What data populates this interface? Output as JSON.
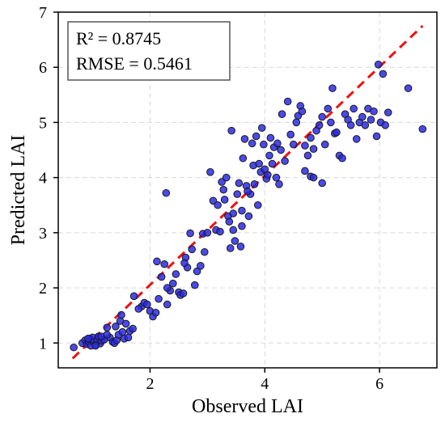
{
  "chart_data": {
    "type": "scatter",
    "title": "",
    "xlabel": "Observed LAI",
    "ylabel": "Predicted LAI",
    "xlim": [
      0.4,
      7.0
    ],
    "ylim": [
      0.55,
      7.0
    ],
    "xticks": [
      "2",
      "4",
      "6"
    ],
    "xtick_values": [
      2,
      4,
      6
    ],
    "yticks": [
      "1",
      "2",
      "3",
      "4",
      "5",
      "6",
      "7"
    ],
    "ytick_values": [
      1,
      2,
      3,
      4,
      5,
      6,
      7
    ],
    "grid": true,
    "point_color": "#2a2ae6",
    "point_edge_color": "#1a1a1a",
    "fit_line": {
      "style": "dashed",
      "color": "#ee1111",
      "x": [
        0.65,
        6.75
      ],
      "y": [
        0.72,
        6.75
      ]
    },
    "stats": {
      "r2_label": "R² = 0.8745",
      "rmse_label": "RMSE = 0.5461"
    },
    "points": [
      [
        0.67,
        0.92
      ],
      [
        0.82,
        1.0
      ],
      [
        0.87,
        1.05
      ],
      [
        0.9,
        0.98
      ],
      [
        0.93,
        1.03
      ],
      [
        0.95,
        1.08
      ],
      [
        0.97,
        0.95
      ],
      [
        1.0,
        1.1
      ],
      [
        1.02,
        1.02
      ],
      [
        1.05,
        0.97
      ],
      [
        1.08,
        1.05
      ],
      [
        1.1,
        1.12
      ],
      [
        1.13,
        0.99
      ],
      [
        1.16,
        1.04
      ],
      [
        1.2,
        1.06
      ],
      [
        1.25,
        1.28
      ],
      [
        1.3,
        1.1
      ],
      [
        1.35,
        1.02
      ],
      [
        1.38,
        1.0
      ],
      [
        1.42,
        1.05
      ],
      [
        1.45,
        1.15
      ],
      [
        1.48,
        1.4
      ],
      [
        1.5,
        1.51
      ],
      [
        1.52,
        1.2
      ],
      [
        1.55,
        1.08
      ],
      [
        1.58,
        1.35
      ],
      [
        1.62,
        1.1
      ],
      [
        1.65,
        1.22
      ],
      [
        1.7,
        1.26
      ],
      [
        1.72,
        1.85
      ],
      [
        1.85,
        1.66
      ],
      [
        1.9,
        1.73
      ],
      [
        2.0,
        1.58
      ],
      [
        2.05,
        1.48
      ],
      [
        2.1,
        1.55
      ],
      [
        2.12,
        2.48
      ],
      [
        2.2,
        2.2
      ],
      [
        2.25,
        2.43
      ],
      [
        2.28,
        3.72
      ],
      [
        2.3,
        1.7
      ],
      [
        2.35,
        1.95
      ],
      [
        2.4,
        2.08
      ],
      [
        2.45,
        2.25
      ],
      [
        2.5,
        1.92
      ],
      [
        2.53,
        1.87
      ],
      [
        2.58,
        1.9
      ],
      [
        2.62,
        2.55
      ],
      [
        2.65,
        2.37
      ],
      [
        2.7,
        2.99
      ],
      [
        2.73,
        2.7
      ],
      [
        2.78,
        2.05
      ],
      [
        2.82,
        2.3
      ],
      [
        2.88,
        2.4
      ],
      [
        2.92,
        2.98
      ],
      [
        3.0,
        3.0
      ],
      [
        3.05,
        4.1
      ],
      [
        3.1,
        3.58
      ],
      [
        3.15,
        3.05
      ],
      [
        3.18,
        3.5
      ],
      [
        3.22,
        3.02
      ],
      [
        3.25,
        3.92
      ],
      [
        3.28,
        3.78
      ],
      [
        3.3,
        3.6
      ],
      [
        3.33,
        4.0
      ],
      [
        3.36,
        3.3
      ],
      [
        3.38,
        3.2
      ],
      [
        3.4,
        2.72
      ],
      [
        3.42,
        4.85
      ],
      [
        3.45,
        3.05
      ],
      [
        3.48,
        2.85
      ],
      [
        3.52,
        3.7
      ],
      [
        3.55,
        3.9
      ],
      [
        3.58,
        2.75
      ],
      [
        3.6,
        3.4
      ],
      [
        3.62,
        4.35
      ],
      [
        3.65,
        4.7
      ],
      [
        3.68,
        3.85
      ],
      [
        3.72,
        3.3
      ],
      [
        3.75,
        3.7
      ],
      [
        3.78,
        4.62
      ],
      [
        3.8,
        4.22
      ],
      [
        3.82,
        3.88
      ],
      [
        3.85,
        4.75
      ],
      [
        3.88,
        3.5
      ],
      [
        3.9,
        4.25
      ],
      [
        3.93,
        4.1
      ],
      [
        3.95,
        4.9
      ],
      [
        3.98,
        4.6
      ],
      [
        4.0,
        4.15
      ],
      [
        4.03,
        3.98
      ],
      [
        4.05,
        4.05
      ],
      [
        4.08,
        4.4
      ],
      [
        4.1,
        4.72
      ],
      [
        4.13,
        4.25
      ],
      [
        4.16,
        4.55
      ],
      [
        4.2,
        4.0
      ],
      [
        4.22,
        4.62
      ],
      [
        4.25,
        3.88
      ],
      [
        4.28,
        4.5
      ],
      [
        4.3,
        5.15
      ],
      [
        4.35,
        4.3
      ],
      [
        4.4,
        5.38
      ],
      [
        4.45,
        4.78
      ],
      [
        4.5,
        4.6
      ],
      [
        4.55,
        5.0
      ],
      [
        4.58,
        5.12
      ],
      [
        4.62,
        5.3
      ],
      [
        4.65,
        5.2
      ],
      [
        4.7,
        4.58
      ],
      [
        4.75,
        4.4
      ],
      [
        4.8,
        4.72
      ],
      [
        4.85,
        4.52
      ],
      [
        4.9,
        4.85
      ],
      [
        4.95,
        4.95
      ],
      [
        5.0,
        5.1
      ],
      [
        5.05,
        4.6
      ],
      [
        5.1,
        5.25
      ],
      [
        5.15,
        5.0
      ],
      [
        5.18,
        5.62
      ],
      [
        5.22,
        4.8
      ],
      [
        5.25,
        4.82
      ],
      [
        5.3,
        4.4
      ],
      [
        5.35,
        4.35
      ],
      [
        5.4,
        5.15
      ],
      [
        5.45,
        5.05
      ],
      [
        5.5,
        4.95
      ],
      [
        5.55,
        5.25
      ],
      [
        5.6,
        4.7
      ],
      [
        5.65,
        5.0
      ],
      [
        5.7,
        5.1
      ],
      [
        5.75,
        4.95
      ],
      [
        5.8,
        5.25
      ],
      [
        5.85,
        5.05
      ],
      [
        5.9,
        5.2
      ],
      [
        5.95,
        4.75
      ],
      [
        5.98,
        6.05
      ],
      [
        6.02,
        5.0
      ],
      [
        6.06,
        5.88
      ],
      [
        6.1,
        4.95
      ],
      [
        6.15,
        5.18
      ],
      [
        6.5,
        5.62
      ],
      [
        6.75,
        4.88
      ],
      [
        4.7,
        4.12
      ],
      [
        4.8,
        4.02
      ],
      [
        4.85,
        4.0
      ],
      [
        5.0,
        3.9
      ],
      [
        3.7,
        3.75
      ],
      [
        3.6,
        3.12
      ],
      [
        3.45,
        3.35
      ],
      [
        2.95,
        2.65
      ],
      [
        2.6,
        2.45
      ],
      [
        2.3,
        2.0
      ],
      [
        2.15,
        1.8
      ],
      [
        1.95,
        1.7
      ],
      [
        1.8,
        1.62
      ],
      [
        1.15,
        1.12
      ],
      [
        1.05,
        0.95
      ],
      [
        0.92,
        1.08
      ],
      [
        1.25,
        1.15
      ],
      [
        1.4,
        1.3
      ]
    ]
  }
}
